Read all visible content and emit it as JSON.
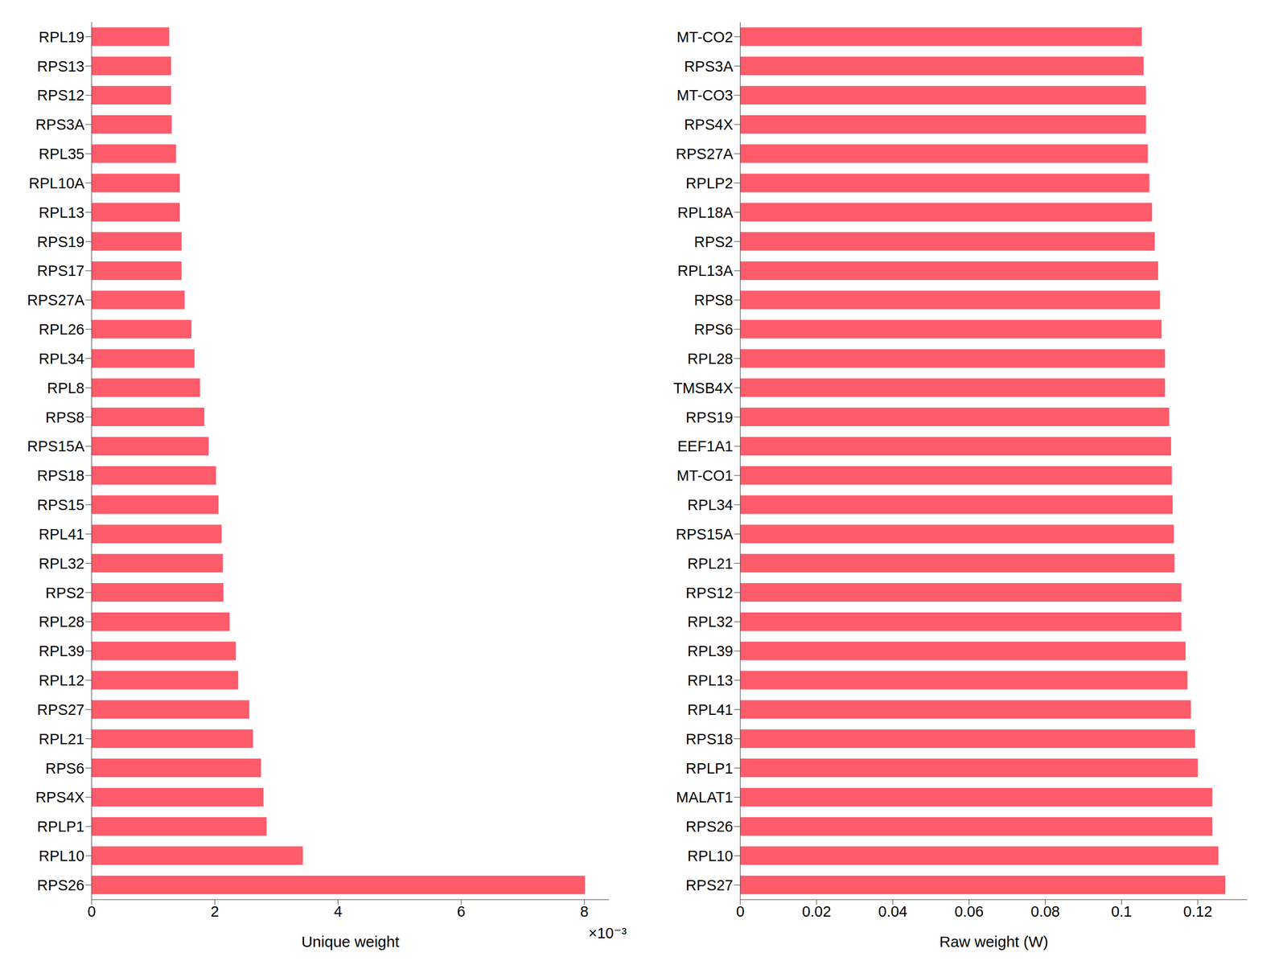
{
  "chart_data": [
    {
      "type": "bar",
      "orientation": "horizontal",
      "xlabel": "Unique weight",
      "annotations": [
        "×10⁻³"
      ],
      "categories": [
        "RPL19",
        "RPS13",
        "RPS12",
        "RPS3A",
        "RPL35",
        "RPL10A",
        "RPL13",
        "RPS19",
        "RPS17",
        "RPS27A",
        "RPL26",
        "RPL34",
        "RPL8",
        "RPS8",
        "RPS15A",
        "RPS18",
        "RPS15",
        "RPL41",
        "RPL32",
        "RPS2",
        "RPL28",
        "RPL39",
        "RPL12",
        "RPS27",
        "RPL21",
        "RPS6",
        "RPS4X",
        "RPLP1",
        "RPL10",
        "RPS26"
      ],
      "values": [
        1.26,
        1.29,
        1.29,
        1.3,
        1.37,
        1.43,
        1.43,
        1.46,
        1.46,
        1.51,
        1.62,
        1.67,
        1.76,
        1.83,
        1.9,
        2.02,
        2.06,
        2.11,
        2.13,
        2.14,
        2.24,
        2.34,
        2.38,
        2.56,
        2.62,
        2.75,
        2.79,
        2.84,
        3.43,
        8.01
      ],
      "color": "#fe5b6b",
      "xlim": [
        0,
        8.4
      ],
      "xticks": [
        0,
        2,
        4,
        6,
        8
      ],
      "grid": false
    },
    {
      "type": "bar",
      "orientation": "horizontal",
      "xlabel": "Raw weight (W)",
      "categories": [
        "MT-CO2",
        "RPS3A",
        "MT-CO3",
        "RPS4X",
        "RPS27A",
        "RPLP2",
        "RPL18A",
        "RPS2",
        "RPL13A",
        "RPS8",
        "RPS6",
        "RPL28",
        "TMSB4X",
        "RPS19",
        "EEF1A1",
        "MT-CO1",
        "RPL34",
        "RPS15A",
        "RPL21",
        "RPS12",
        "RPL32",
        "RPL39",
        "RPL13",
        "RPL41",
        "RPS18",
        "RPLP1",
        "MALAT1",
        "RPS26",
        "RPL10",
        "RPS27"
      ],
      "values": [
        0.1053,
        0.1058,
        0.1064,
        0.1064,
        0.1069,
        0.1073,
        0.108,
        0.1087,
        0.1096,
        0.1101,
        0.1105,
        0.1114,
        0.1114,
        0.1125,
        0.113,
        0.1132,
        0.1134,
        0.1137,
        0.1139,
        0.1157,
        0.1157,
        0.1168,
        0.1173,
        0.1182,
        0.1193,
        0.12,
        0.1238,
        0.1238,
        0.1254,
        0.1272
      ],
      "color": "#fe5b6b",
      "xlim": [
        0,
        0.133
      ],
      "xticks": [
        0,
        0.02,
        0.04,
        0.06,
        0.08,
        0.1,
        0.12
      ],
      "grid": false
    }
  ]
}
